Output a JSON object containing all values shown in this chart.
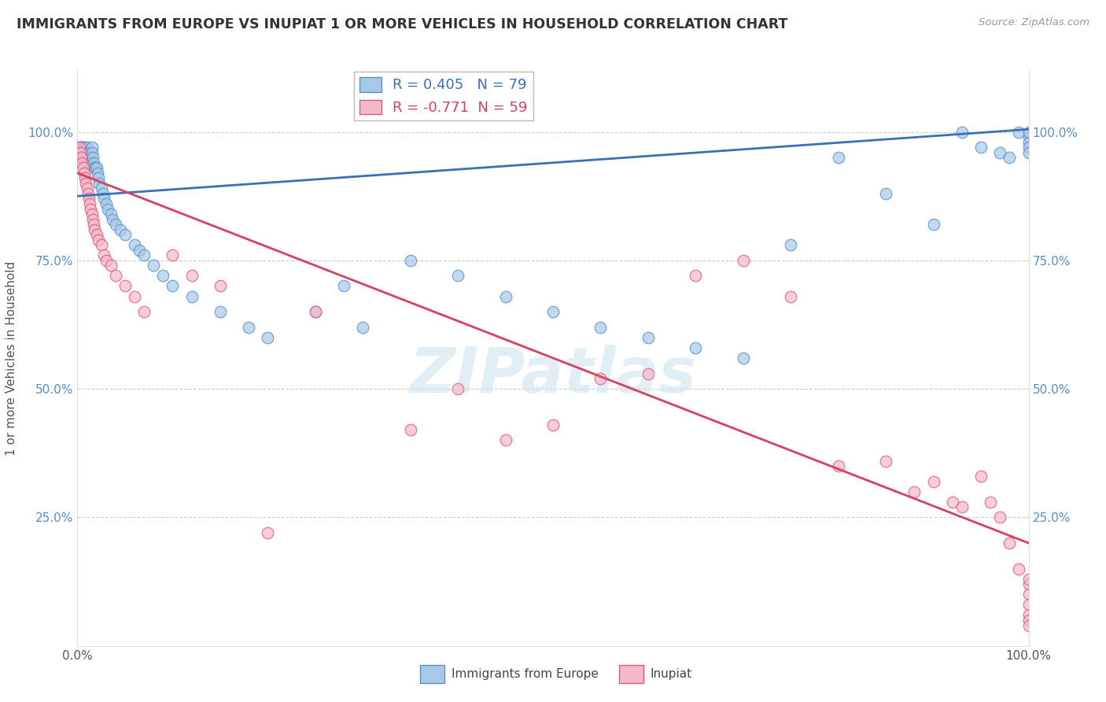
{
  "title": "IMMIGRANTS FROM EUROPE VS INUPIAT 1 OR MORE VEHICLES IN HOUSEHOLD CORRELATION CHART",
  "source": "Source: ZipAtlas.com",
  "ylabel": "1 or more Vehicles in Household",
  "blue_R": 0.405,
  "blue_N": 79,
  "pink_R": -0.771,
  "pink_N": 59,
  "blue_label": "Immigrants from Europe",
  "pink_label": "Inupiat",
  "blue_color": "#A8C8E8",
  "pink_color": "#F5B8C8",
  "blue_edge_color": "#5590C8",
  "pink_edge_color": "#E05878",
  "blue_line_color": "#3A70B8",
  "pink_line_color": "#D84060",
  "background_color": "#FFFFFF",
  "grid_color": "#CCCCCC",
  "watermark": "ZIPatlas",
  "title_color": "#333333",
  "source_color": "#999999",
  "tick_color": "#5590C8",
  "blue_x": [
    0.002,
    0.003,
    0.003,
    0.004,
    0.004,
    0.005,
    0.005,
    0.005,
    0.006,
    0.006,
    0.007,
    0.007,
    0.008,
    0.008,
    0.009,
    0.009,
    0.01,
    0.01,
    0.01,
    0.011,
    0.012,
    0.012,
    0.013,
    0.014,
    0.015,
    0.015,
    0.016,
    0.017,
    0.018,
    0.019,
    0.02,
    0.021,
    0.022,
    0.023,
    0.025,
    0.027,
    0.028,
    0.03,
    0.032,
    0.035,
    0.037,
    0.04,
    0.045,
    0.05,
    0.06,
    0.065,
    0.07,
    0.08,
    0.09,
    0.1,
    0.12,
    0.15,
    0.18,
    0.2,
    0.25,
    0.28,
    0.3,
    0.35,
    0.4,
    0.45,
    0.5,
    0.55,
    0.6,
    0.65,
    0.7,
    0.75,
    0.8,
    0.85,
    0.9,
    0.93,
    0.95,
    0.97,
    0.98,
    0.99,
    1.0,
    1.0,
    1.0,
    1.0,
    1.0
  ],
  "blue_y": [
    0.97,
    0.96,
    0.95,
    0.97,
    0.96,
    0.97,
    0.96,
    0.95,
    0.97,
    0.95,
    0.96,
    0.95,
    0.97,
    0.96,
    0.95,
    0.94,
    0.97,
    0.96,
    0.95,
    0.96,
    0.95,
    0.94,
    0.95,
    0.94,
    0.97,
    0.96,
    0.95,
    0.94,
    0.93,
    0.93,
    0.93,
    0.92,
    0.91,
    0.9,
    0.89,
    0.88,
    0.87,
    0.86,
    0.85,
    0.84,
    0.83,
    0.82,
    0.81,
    0.8,
    0.78,
    0.77,
    0.76,
    0.74,
    0.72,
    0.7,
    0.68,
    0.65,
    0.62,
    0.6,
    0.65,
    0.7,
    0.62,
    0.75,
    0.72,
    0.68,
    0.65,
    0.62,
    0.6,
    0.58,
    0.56,
    0.78,
    0.95,
    0.88,
    0.82,
    1.0,
    0.97,
    0.96,
    0.95,
    1.0,
    0.99,
    0.98,
    0.97,
    0.96,
    1.0
  ],
  "pink_x": [
    0.002,
    0.003,
    0.004,
    0.005,
    0.006,
    0.007,
    0.008,
    0.009,
    0.01,
    0.011,
    0.012,
    0.013,
    0.014,
    0.015,
    0.016,
    0.017,
    0.018,
    0.02,
    0.022,
    0.025,
    0.028,
    0.03,
    0.035,
    0.04,
    0.05,
    0.06,
    0.07,
    0.1,
    0.12,
    0.15,
    0.2,
    0.25,
    0.35,
    0.4,
    0.45,
    0.5,
    0.55,
    0.6,
    0.65,
    0.7,
    0.75,
    0.8,
    0.85,
    0.88,
    0.9,
    0.92,
    0.93,
    0.95,
    0.96,
    0.97,
    0.98,
    0.99,
    1.0,
    1.0,
    1.0,
    1.0,
    1.0,
    1.0,
    1.0
  ],
  "pink_y": [
    0.97,
    0.96,
    0.95,
    0.94,
    0.93,
    0.92,
    0.91,
    0.9,
    0.89,
    0.88,
    0.87,
    0.86,
    0.85,
    0.84,
    0.83,
    0.82,
    0.81,
    0.8,
    0.79,
    0.78,
    0.76,
    0.75,
    0.74,
    0.72,
    0.7,
    0.68,
    0.65,
    0.76,
    0.72,
    0.7,
    0.22,
    0.65,
    0.42,
    0.5,
    0.4,
    0.43,
    0.52,
    0.53,
    0.72,
    0.75,
    0.68,
    0.35,
    0.36,
    0.3,
    0.32,
    0.28,
    0.27,
    0.33,
    0.28,
    0.25,
    0.2,
    0.15,
    0.12,
    0.1,
    0.08,
    0.06,
    0.13,
    0.05,
    0.04
  ]
}
